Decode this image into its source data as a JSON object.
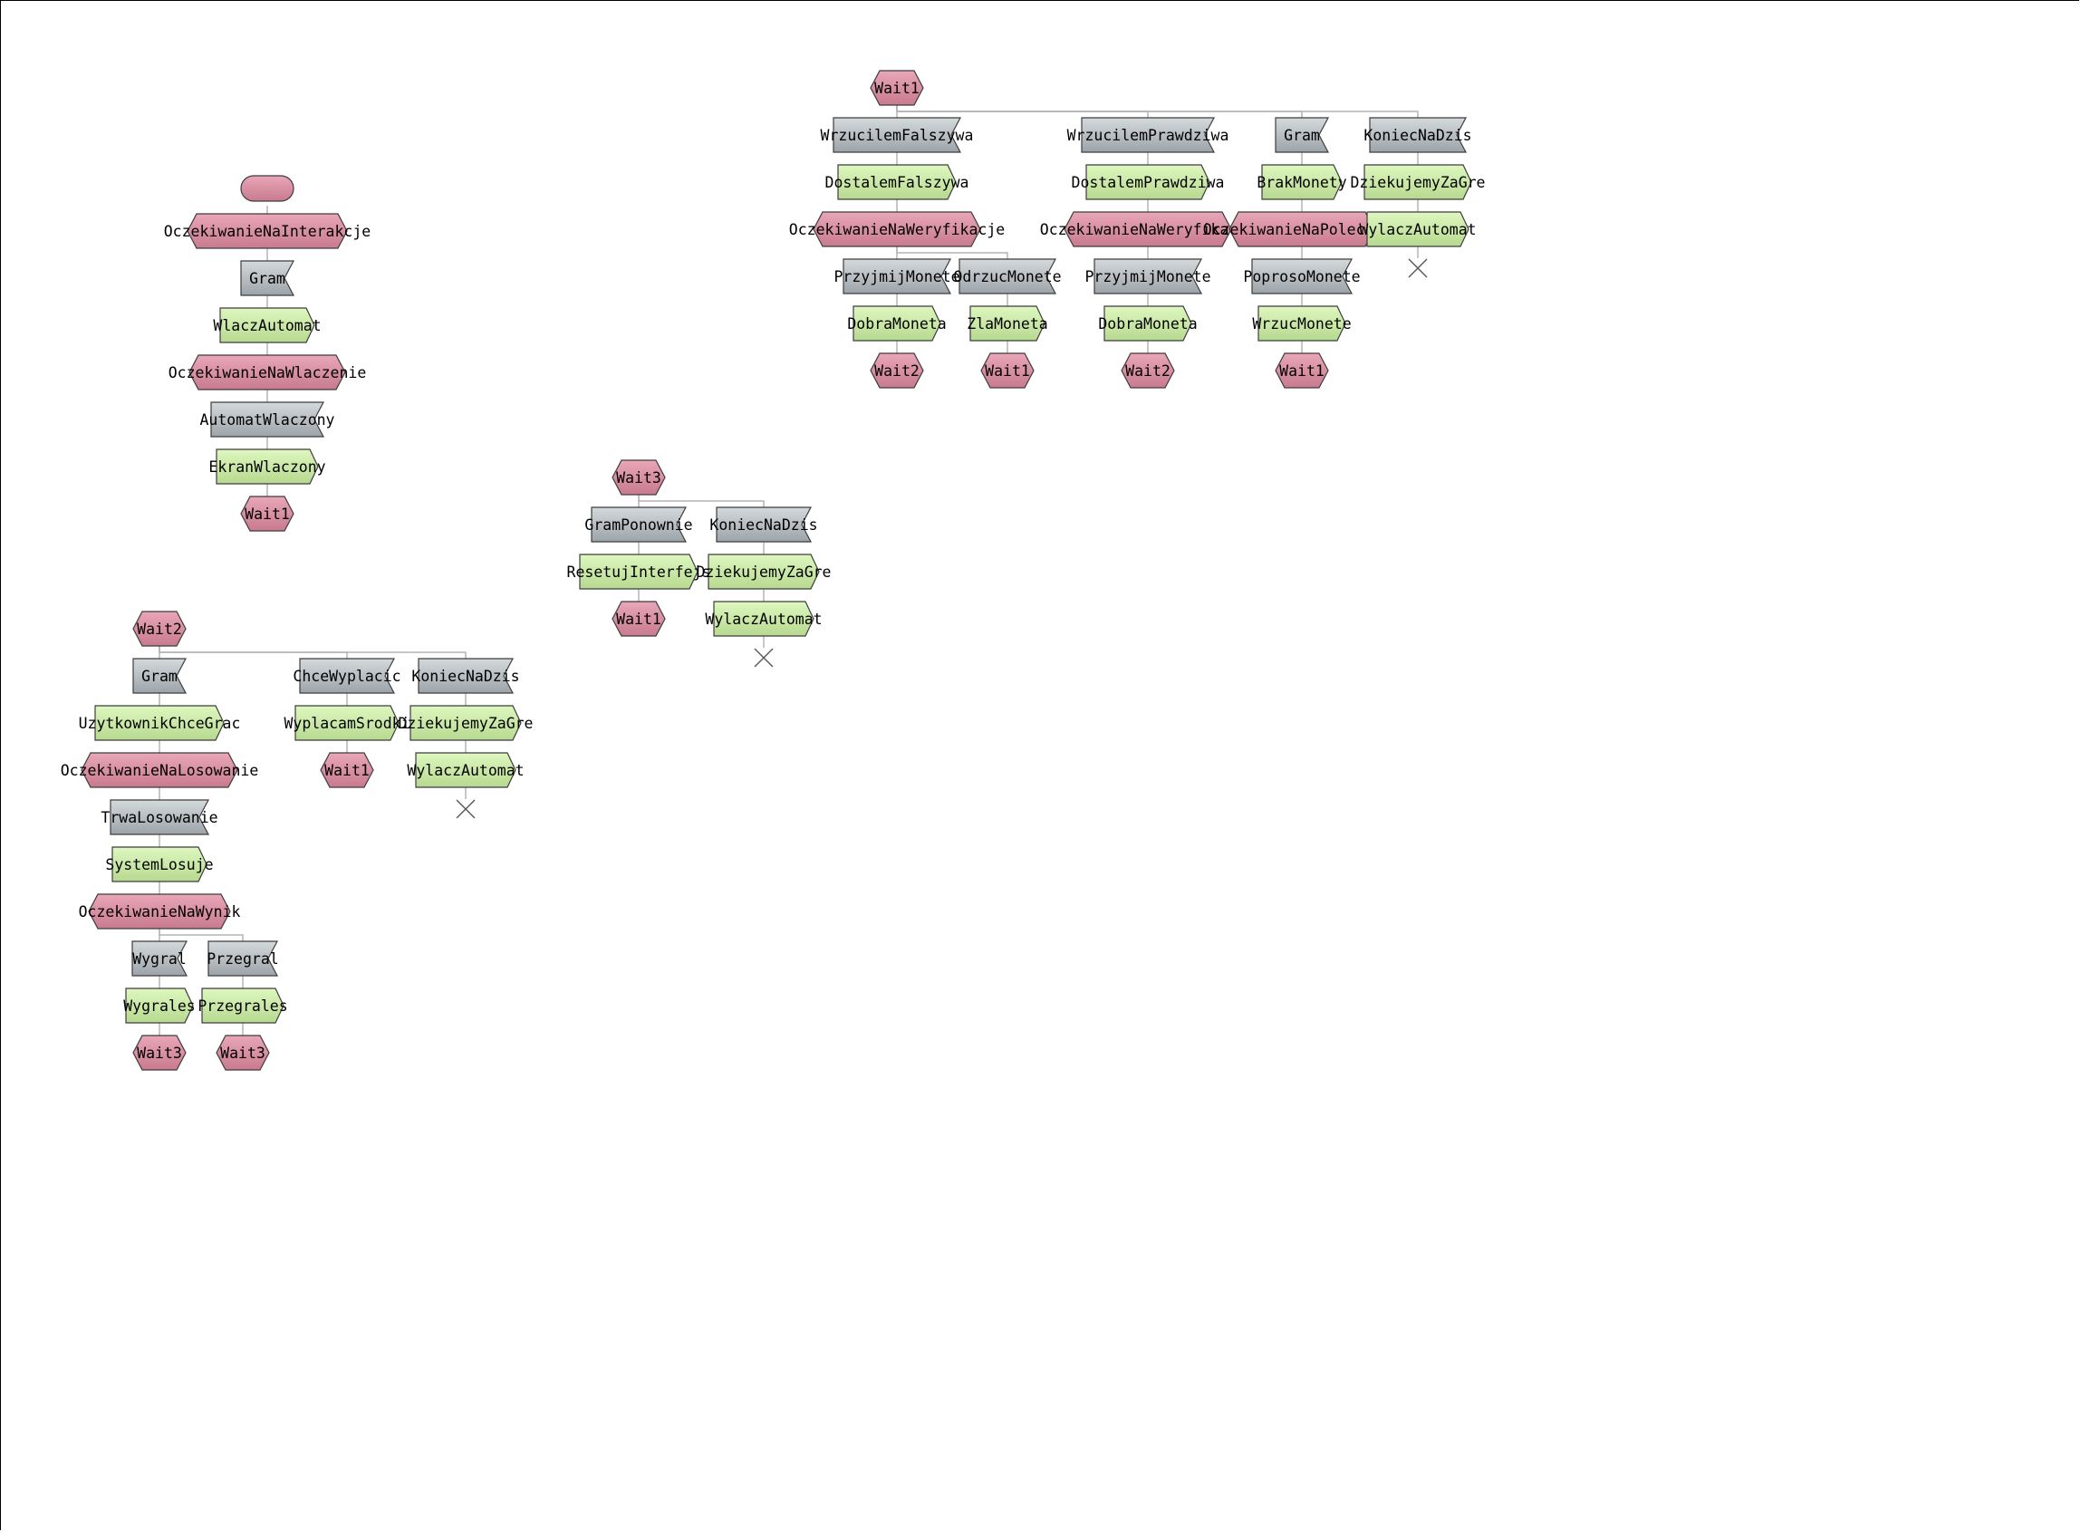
{
  "colors": {
    "state_fill": "#e8a7b8",
    "state_fill_dark": "#c97a8f",
    "event_fill": "#d4d9dc",
    "event_fill_dark": "#9da4a9",
    "action_fill": "#def7bf",
    "action_fill_dark": "#b7d990",
    "stroke": "#3c3c3c",
    "edge": "#b4b4b4"
  },
  "nodes": {
    "a0": {
      "type": "start",
      "label": ""
    },
    "a1": {
      "type": "state",
      "label": "OczekiwanieNaInterakcje"
    },
    "a2": {
      "type": "event",
      "label": "Gram"
    },
    "a3": {
      "type": "action",
      "label": "WlaczAutomat"
    },
    "a4": {
      "type": "state",
      "label": "OczekiwanieNaWlaczenie"
    },
    "a5": {
      "type": "event",
      "label": "AutomatWlaczony"
    },
    "a6": {
      "type": "action",
      "label": "EkranWlaczony"
    },
    "a7": {
      "type": "state",
      "label": "Wait1"
    },
    "b0": {
      "type": "state",
      "label": "Wait1"
    },
    "b1": {
      "type": "event",
      "label": "WrzucilemFalszywa"
    },
    "b2": {
      "type": "action",
      "label": "DostalemFalszywa"
    },
    "b3": {
      "type": "state",
      "label": "OczekiwanieNaWeryfikacje"
    },
    "b4": {
      "type": "event",
      "label": "PrzyjmijMonete"
    },
    "b5": {
      "type": "action",
      "label": "DobraMoneta"
    },
    "b6": {
      "type": "state",
      "label": "Wait2"
    },
    "b7": {
      "type": "event",
      "label": "OdrzucMonete"
    },
    "b8": {
      "type": "action",
      "label": "ZlaMoneta"
    },
    "b9": {
      "type": "state",
      "label": "Wait1"
    },
    "b10": {
      "type": "event",
      "label": "WrzucilemPrawdziwa"
    },
    "b11": {
      "type": "action",
      "label": "DostalemPrawdziwa"
    },
    "b12": {
      "type": "state",
      "label": "OczekiwanieNaWeryfikacje"
    },
    "b13": {
      "type": "event",
      "label": "PrzyjmijMonete"
    },
    "b14": {
      "type": "action",
      "label": "DobraMoneta"
    },
    "b15": {
      "type": "state",
      "label": "Wait2"
    },
    "b16": {
      "type": "event",
      "label": "Gram"
    },
    "b17": {
      "type": "action",
      "label": "BrakMonety"
    },
    "b18": {
      "type": "state",
      "label": "OczekiwanieNaPolecenie"
    },
    "b19": {
      "type": "event",
      "label": "PoprosoMonete"
    },
    "b20": {
      "type": "action",
      "label": "WrzucMonete"
    },
    "b21": {
      "type": "state",
      "label": "Wait1"
    },
    "b22": {
      "type": "event",
      "label": "KoniecNaDzis"
    },
    "b23": {
      "type": "action",
      "label": "DziekujemyZaGre"
    },
    "b24": {
      "type": "action",
      "label": "WylaczAutomat"
    },
    "b25": {
      "type": "end",
      "label": ""
    },
    "c0": {
      "type": "state",
      "label": "Wait3"
    },
    "c1": {
      "type": "event",
      "label": "GramPonownie"
    },
    "c2": {
      "type": "action",
      "label": "ResetujInterfejs"
    },
    "c3": {
      "type": "state",
      "label": "Wait1"
    },
    "c4": {
      "type": "event",
      "label": "KoniecNaDzis"
    },
    "c5": {
      "type": "action",
      "label": "DziekujemyZaGre"
    },
    "c6": {
      "type": "action",
      "label": "WylaczAutomat"
    },
    "c7": {
      "type": "end",
      "label": ""
    },
    "d0": {
      "type": "state",
      "label": "Wait2"
    },
    "d1": {
      "type": "event",
      "label": "Gram"
    },
    "d2": {
      "type": "action",
      "label": "UzytkownikChceGrac"
    },
    "d3": {
      "type": "state",
      "label": "OczekiwanieNaLosowanie"
    },
    "d4": {
      "type": "event",
      "label": "TrwaLosowanie"
    },
    "d5": {
      "type": "action",
      "label": "SystemLosuje"
    },
    "d6": {
      "type": "state",
      "label": "OczekiwanieNaWynik"
    },
    "d7": {
      "type": "event",
      "label": "Wygral"
    },
    "d8": {
      "type": "action",
      "label": "Wygrales"
    },
    "d9": {
      "type": "state",
      "label": "Wait3"
    },
    "d10": {
      "type": "event",
      "label": "Przegral"
    },
    "d11": {
      "type": "action",
      "label": "Przegrales"
    },
    "d12": {
      "type": "state",
      "label": "Wait3"
    },
    "d13": {
      "type": "event",
      "label": "ChceWyplacic"
    },
    "d14": {
      "type": "action",
      "label": "WyplacamSrodki"
    },
    "d15": {
      "type": "state",
      "label": "Wait1"
    },
    "d16": {
      "type": "event",
      "label": "KoniecNaDzis"
    },
    "d17": {
      "type": "action",
      "label": "DziekujemyZaGre"
    },
    "d18": {
      "type": "action",
      "label": "WylaczAutomat"
    },
    "d19": {
      "type": "end",
      "label": ""
    }
  },
  "edges": [
    [
      "a0",
      "a1"
    ],
    [
      "a1",
      "a2"
    ],
    [
      "a2",
      "a3"
    ],
    [
      "a3",
      "a4"
    ],
    [
      "a4",
      "a5"
    ],
    [
      "a5",
      "a6"
    ],
    [
      "a6",
      "a7"
    ],
    [
      "b0",
      "b1"
    ],
    [
      "b1",
      "b2"
    ],
    [
      "b2",
      "b3"
    ],
    [
      "b3",
      "b4"
    ],
    [
      "b4",
      "b5"
    ],
    [
      "b5",
      "b6"
    ],
    [
      "b3",
      "b7"
    ],
    [
      "b7",
      "b8"
    ],
    [
      "b8",
      "b9"
    ],
    [
      "b0",
      "b10"
    ],
    [
      "b10",
      "b11"
    ],
    [
      "b11",
      "b12"
    ],
    [
      "b12",
      "b13"
    ],
    [
      "b13",
      "b14"
    ],
    [
      "b14",
      "b15"
    ],
    [
      "b0",
      "b16"
    ],
    [
      "b16",
      "b17"
    ],
    [
      "b17",
      "b18"
    ],
    [
      "b18",
      "b19"
    ],
    [
      "b19",
      "b20"
    ],
    [
      "b20",
      "b21"
    ],
    [
      "b0",
      "b22"
    ],
    [
      "b22",
      "b23"
    ],
    [
      "b23",
      "b24"
    ],
    [
      "b24",
      "b25"
    ],
    [
      "c0",
      "c1"
    ],
    [
      "c1",
      "c2"
    ],
    [
      "c2",
      "c3"
    ],
    [
      "c0",
      "c4"
    ],
    [
      "c4",
      "c5"
    ],
    [
      "c5",
      "c6"
    ],
    [
      "c6",
      "c7"
    ],
    [
      "d0",
      "d1"
    ],
    [
      "d1",
      "d2"
    ],
    [
      "d2",
      "d3"
    ],
    [
      "d3",
      "d4"
    ],
    [
      "d4",
      "d5"
    ],
    [
      "d5",
      "d6"
    ],
    [
      "d6",
      "d7"
    ],
    [
      "d7",
      "d8"
    ],
    [
      "d8",
      "d9"
    ],
    [
      "d6",
      "d10"
    ],
    [
      "d10",
      "d11"
    ],
    [
      "d11",
      "d12"
    ],
    [
      "d0",
      "d13"
    ],
    [
      "d13",
      "d14"
    ],
    [
      "d14",
      "d15"
    ],
    [
      "d0",
      "d16"
    ],
    [
      "d16",
      "d17"
    ],
    [
      "d17",
      "d18"
    ],
    [
      "d18",
      "d19"
    ]
  ]
}
